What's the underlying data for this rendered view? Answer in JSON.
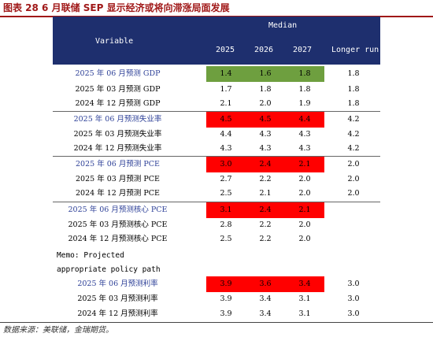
{
  "caption": "图表 28 6 月联储 SEP 显示经济或将向滞涨局面发展",
  "header": {
    "median": "Median",
    "variable": "Variable",
    "col_2025": "2025",
    "col_2026": "2026",
    "col_2027": "2027",
    "col_longer": "Longer run"
  },
  "rows": [
    {
      "label": "2025 年 06 月预测 GDP",
      "v2025": "1.4",
      "v2026": "1.6",
      "v2027": "1.8",
      "lr": "1.8"
    },
    {
      "label": "2025 年 03 月预测 GDP",
      "v2025": "1.7",
      "v2026": "1.8",
      "v2027": "1.8",
      "lr": "1.8"
    },
    {
      "label": "2024 年 12 月预测 GDP",
      "v2025": "2.1",
      "v2026": "2.0",
      "v2027": "1.9",
      "lr": "1.8"
    },
    {
      "label": "2025 年 06 月预测失业率",
      "v2025": "4.5",
      "v2026": "4.5",
      "v2027": "4.4",
      "lr": "4.2"
    },
    {
      "label": "2025 年 03 月预测失业率",
      "v2025": "4.4",
      "v2026": "4.3",
      "v2027": "4.3",
      "lr": "4.2"
    },
    {
      "label": "2024 年 12 月预测失业率",
      "v2025": "4.3",
      "v2026": "4.3",
      "v2027": "4.3",
      "lr": "4.2"
    },
    {
      "label": "2025 年 06 月预测 PCE",
      "v2025": "3.0",
      "v2026": "2.4",
      "v2027": "2.1",
      "lr": "2.0"
    },
    {
      "label": "2025 年 03 月预测 PCE",
      "v2025": "2.7",
      "v2026": "2.2",
      "v2027": "2.0",
      "lr": "2.0"
    },
    {
      "label": "2024 年 12 月预测 PCE",
      "v2025": "2.5",
      "v2026": "2.1",
      "v2027": "2.0",
      "lr": "2.0"
    },
    {
      "label": "2025 年 06 月预测核心 PCE",
      "v2025": "3.1",
      "v2026": "2.4",
      "v2027": "2.1",
      "lr": ""
    },
    {
      "label": "2025 年 03 月预测核心 PCE",
      "v2025": "2.8",
      "v2026": "2.2",
      "v2027": "2.0",
      "lr": ""
    },
    {
      "label": "2024 年 12 月预测核心 PCE",
      "v2025": "2.5",
      "v2026": "2.2",
      "v2027": "2.0",
      "lr": ""
    },
    {
      "label": "2025 年 06 月预测利率",
      "v2025": "3.9",
      "v2026": "3.6",
      "v2027": "3.4",
      "lr": "3.0"
    },
    {
      "label": "2025 年 03 月预测利率",
      "v2025": "3.9",
      "v2026": "3.4",
      "v2027": "3.1",
      "lr": "3.0"
    },
    {
      "label": "2024 年 12 月预测利率",
      "v2025": "3.9",
      "v2026": "3.4",
      "v2027": "3.1",
      "lr": "3.0"
    }
  ],
  "memo": {
    "line1": "Memo: Projected",
    "line2": "appropriate policy path"
  },
  "source": "数据来源：美联储，金瑞期货。",
  "colors": {
    "caption": "#a01818",
    "header_bg": "#1e2f6e",
    "highlight_green": "#6e9f3f",
    "highlight_red": "#ff0000",
    "highlight_label": "#2c3f97"
  }
}
